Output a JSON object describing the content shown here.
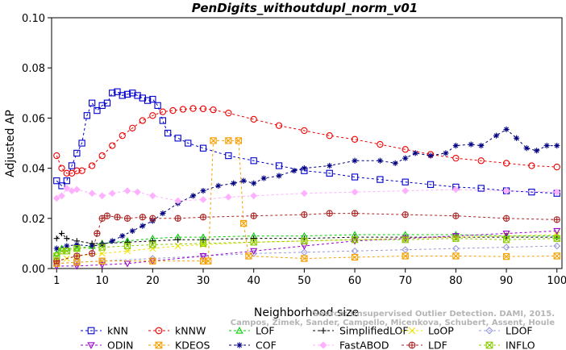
{
  "chart_data": {
    "type": "line",
    "title": "PenDigits_withoutdupl_norm_v01",
    "xlabel": "Neighborhood size",
    "ylabel": "Adjusted AP",
    "xlim": [
      0,
      101
    ],
    "ylim": [
      0,
      0.1
    ],
    "x_ticks": [
      1,
      10,
      20,
      30,
      40,
      50,
      60,
      70,
      80,
      90,
      100
    ],
    "y_ticks": [
      "0.00",
      "0.02",
      "0.04",
      "0.06",
      "0.08",
      "0.10"
    ],
    "grid": false,
    "legend_position": "bottom",
    "watermark": [
      "Source: Unsupervised Outlier Detection. DAMI, 2015.",
      "Campos, Zimek, Sander, Campello, Micenkova, Schubert, Assent, Houle"
    ],
    "series": [
      {
        "name": "kNN",
        "color": "#0000cc",
        "marker": "square",
        "points": [
          [
            1,
            0.035
          ],
          [
            2,
            0.033
          ],
          [
            3,
            0.035
          ],
          [
            4,
            0.041
          ],
          [
            5,
            0.046
          ],
          [
            6,
            0.05
          ],
          [
            7,
            0.061
          ],
          [
            8,
            0.066
          ],
          [
            9,
            0.063
          ],
          [
            10,
            0.065
          ],
          [
            11,
            0.066
          ],
          [
            12,
            0.07
          ],
          [
            13,
            0.0705
          ],
          [
            14,
            0.069
          ],
          [
            15,
            0.0695
          ],
          [
            16,
            0.07
          ],
          [
            17,
            0.069
          ],
          [
            18,
            0.068
          ],
          [
            19,
            0.067
          ],
          [
            20,
            0.0675
          ],
          [
            21,
            0.065
          ],
          [
            22,
            0.059
          ],
          [
            23,
            0.054
          ],
          [
            25,
            0.052
          ],
          [
            27,
            0.05
          ],
          [
            30,
            0.048
          ],
          [
            35,
            0.045
          ],
          [
            40,
            0.043
          ],
          [
            45,
            0.041
          ],
          [
            50,
            0.039
          ],
          [
            55,
            0.038
          ],
          [
            60,
            0.0365
          ],
          [
            65,
            0.0355
          ],
          [
            70,
            0.0345
          ],
          [
            75,
            0.0335
          ],
          [
            80,
            0.0325
          ],
          [
            85,
            0.032
          ],
          [
            90,
            0.031
          ],
          [
            95,
            0.0305
          ],
          [
            100,
            0.03
          ]
        ]
      },
      {
        "name": "kNNW",
        "color": "#ee0000",
        "marker": "circle",
        "points": [
          [
            1,
            0.045
          ],
          [
            2,
            0.04
          ],
          [
            3,
            0.038
          ],
          [
            4,
            0.038
          ],
          [
            5,
            0.039
          ],
          [
            6,
            0.039
          ],
          [
            8,
            0.041
          ],
          [
            10,
            0.045
          ],
          [
            12,
            0.049
          ],
          [
            14,
            0.053
          ],
          [
            16,
            0.056
          ],
          [
            18,
            0.059
          ],
          [
            20,
            0.061
          ],
          [
            22,
            0.0625
          ],
          [
            24,
            0.063
          ],
          [
            26,
            0.0635
          ],
          [
            28,
            0.0638
          ],
          [
            30,
            0.0637
          ],
          [
            32,
            0.0633
          ],
          [
            35,
            0.062
          ],
          [
            40,
            0.0595
          ],
          [
            45,
            0.057
          ],
          [
            50,
            0.055
          ],
          [
            55,
            0.053
          ],
          [
            60,
            0.0515
          ],
          [
            65,
            0.0495
          ],
          [
            70,
            0.0475
          ],
          [
            75,
            0.0455
          ],
          [
            80,
            0.044
          ],
          [
            85,
            0.043
          ],
          [
            90,
            0.042
          ],
          [
            95,
            0.041
          ],
          [
            100,
            0.0405
          ]
        ]
      },
      {
        "name": "LOF",
        "color": "#00cc00",
        "marker": "triangle-up",
        "points": [
          [
            1,
            0.006
          ],
          [
            2,
            0.008
          ],
          [
            3,
            0.008
          ],
          [
            5,
            0.008
          ],
          [
            8,
            0.009
          ],
          [
            10,
            0.01
          ],
          [
            15,
            0.011
          ],
          [
            20,
            0.012
          ],
          [
            25,
            0.0125
          ],
          [
            30,
            0.0125
          ],
          [
            40,
            0.013
          ],
          [
            50,
            0.013
          ],
          [
            60,
            0.0135
          ],
          [
            70,
            0.0135
          ],
          [
            80,
            0.0135
          ],
          [
            90,
            0.013
          ],
          [
            100,
            0.013
          ]
        ]
      },
      {
        "name": "SimplifiedLOF",
        "color": "#000000",
        "marker": "plus",
        "points": [
          [
            1,
            0.012
          ],
          [
            2,
            0.014
          ],
          [
            3,
            0.012
          ],
          [
            5,
            0.011
          ],
          [
            8,
            0.01
          ],
          [
            10,
            0.01
          ],
          [
            15,
            0.0105
          ],
          [
            20,
            0.011
          ],
          [
            25,
            0.0115
          ],
          [
            30,
            0.0115
          ],
          [
            40,
            0.012
          ],
          [
            50,
            0.012
          ],
          [
            60,
            0.0125
          ],
          [
            70,
            0.0125
          ],
          [
            80,
            0.0125
          ],
          [
            90,
            0.0125
          ],
          [
            100,
            0.0125
          ]
        ]
      },
      {
        "name": "LoOP",
        "color": "#f0e000",
        "marker": "cross",
        "points": [
          [
            1,
            0.003
          ],
          [
            3,
            0.004
          ],
          [
            5,
            0.005
          ],
          [
            10,
            0.006
          ],
          [
            15,
            0.007
          ],
          [
            20,
            0.008
          ],
          [
            25,
            0.009
          ],
          [
            30,
            0.0095
          ],
          [
            40,
            0.0105
          ],
          [
            50,
            0.011
          ],
          [
            60,
            0.0115
          ],
          [
            70,
            0.012
          ],
          [
            80,
            0.0125
          ],
          [
            90,
            0.013
          ],
          [
            100,
            0.0135
          ]
        ]
      },
      {
        "name": "LDOF",
        "color": "#9999dd",
        "marker": "diamond",
        "points": [
          [
            1,
            0.002
          ],
          [
            5,
            0.0025
          ],
          [
            10,
            0.003
          ],
          [
            20,
            0.004
          ],
          [
            30,
            0.005
          ],
          [
            40,
            0.006
          ],
          [
            50,
            0.0065
          ],
          [
            60,
            0.007
          ],
          [
            70,
            0.0075
          ],
          [
            80,
            0.008
          ],
          [
            90,
            0.0085
          ],
          [
            100,
            0.009
          ]
        ]
      },
      {
        "name": "ODIN",
        "color": "#9900cc",
        "marker": "triangle-down",
        "points": [
          [
            1,
            0.001
          ],
          [
            5,
            0.001
          ],
          [
            10,
            0.0015
          ],
          [
            15,
            0.002
          ],
          [
            20,
            0.003
          ],
          [
            30,
            0.005
          ],
          [
            40,
            0.007
          ],
          [
            50,
            0.009
          ],
          [
            60,
            0.011
          ],
          [
            70,
            0.012
          ],
          [
            80,
            0.013
          ],
          [
            90,
            0.014
          ],
          [
            100,
            0.015
          ]
        ]
      },
      {
        "name": "KDEOS",
        "color": "#f5a000",
        "marker": "square-x",
        "points": [
          [
            1,
            0.002
          ],
          [
            5,
            0.0025
          ],
          [
            10,
            0.003
          ],
          [
            20,
            0.003
          ],
          [
            30,
            0.003
          ],
          [
            31,
            0.003
          ],
          [
            32,
            0.051
          ],
          [
            35,
            0.051
          ],
          [
            37,
            0.051
          ],
          [
            38,
            0.018
          ],
          [
            39,
            0.005
          ],
          [
            50,
            0.004
          ],
          [
            60,
            0.0045
          ],
          [
            70,
            0.005
          ],
          [
            80,
            0.005
          ],
          [
            90,
            0.0048
          ],
          [
            100,
            0.005
          ]
        ]
      },
      {
        "name": "COF",
        "color": "#000080",
        "marker": "asterisk",
        "points": [
          [
            1,
            0.008
          ],
          [
            3,
            0.009
          ],
          [
            5,
            0.0095
          ],
          [
            8,
            0.009
          ],
          [
            10,
            0.0095
          ],
          [
            12,
            0.011
          ],
          [
            14,
            0.013
          ],
          [
            16,
            0.015
          ],
          [
            18,
            0.017
          ],
          [
            20,
            0.019
          ],
          [
            22,
            0.022
          ],
          [
            25,
            0.026
          ],
          [
            28,
            0.029
          ],
          [
            30,
            0.031
          ],
          [
            33,
            0.033
          ],
          [
            36,
            0.034
          ],
          [
            38,
            0.035
          ],
          [
            40,
            0.034
          ],
          [
            42,
            0.036
          ],
          [
            45,
            0.037
          ],
          [
            48,
            0.039
          ],
          [
            50,
            0.04
          ],
          [
            55,
            0.041
          ],
          [
            60,
            0.043
          ],
          [
            65,
            0.043
          ],
          [
            68,
            0.042
          ],
          [
            70,
            0.044
          ],
          [
            72,
            0.046
          ],
          [
            75,
            0.045
          ],
          [
            78,
            0.046
          ],
          [
            80,
            0.049
          ],
          [
            83,
            0.0495
          ],
          [
            85,
            0.049
          ],
          [
            88,
            0.053
          ],
          [
            90,
            0.0555
          ],
          [
            92,
            0.052
          ],
          [
            94,
            0.048
          ],
          [
            96,
            0.047
          ],
          [
            98,
            0.049
          ],
          [
            100,
            0.049
          ]
        ]
      },
      {
        "name": "FastABOD",
        "color": "#ffb0ff",
        "marker": "diamond-filled",
        "points": [
          [
            1,
            0.028
          ],
          [
            2,
            0.029
          ],
          [
            3,
            0.032
          ],
          [
            4,
            0.031
          ],
          [
            5,
            0.0315
          ],
          [
            8,
            0.03
          ],
          [
            10,
            0.029
          ],
          [
            12,
            0.03
          ],
          [
            15,
            0.031
          ],
          [
            17,
            0.0305
          ],
          [
            20,
            0.029
          ],
          [
            25,
            0.027
          ],
          [
            30,
            0.0275
          ],
          [
            35,
            0.0285
          ],
          [
            40,
            0.029
          ],
          [
            50,
            0.03
          ],
          [
            60,
            0.0305
          ],
          [
            70,
            0.031
          ],
          [
            80,
            0.0315
          ],
          [
            90,
            0.031
          ],
          [
            100,
            0.0305
          ]
        ]
      },
      {
        "name": "LDF",
        "color": "#aa2222",
        "marker": "circle-plus",
        "points": [
          [
            1,
            0.003
          ],
          [
            5,
            0.005
          ],
          [
            8,
            0.006
          ],
          [
            9,
            0.014
          ],
          [
            10,
            0.02
          ],
          [
            11,
            0.021
          ],
          [
            13,
            0.0205
          ],
          [
            15,
            0.02
          ],
          [
            18,
            0.0205
          ],
          [
            20,
            0.02
          ],
          [
            25,
            0.02
          ],
          [
            30,
            0.0205
          ],
          [
            40,
            0.021
          ],
          [
            50,
            0.0215
          ],
          [
            55,
            0.022
          ],
          [
            60,
            0.022
          ],
          [
            70,
            0.0215
          ],
          [
            80,
            0.021
          ],
          [
            90,
            0.02
          ],
          [
            100,
            0.0195
          ]
        ]
      },
      {
        "name": "INFLO",
        "color": "#88cc00",
        "marker": "square-x",
        "points": [
          [
            1,
            0.005
          ],
          [
            2,
            0.007
          ],
          [
            3,
            0.007
          ],
          [
            5,
            0.008
          ],
          [
            10,
            0.0085
          ],
          [
            15,
            0.009
          ],
          [
            20,
            0.0095
          ],
          [
            30,
            0.01
          ],
          [
            40,
            0.0105
          ],
          [
            50,
            0.011
          ],
          [
            60,
            0.0115
          ],
          [
            70,
            0.0115
          ],
          [
            80,
            0.012
          ],
          [
            90,
            0.0115
          ],
          [
            100,
            0.012
          ]
        ]
      }
    ]
  }
}
